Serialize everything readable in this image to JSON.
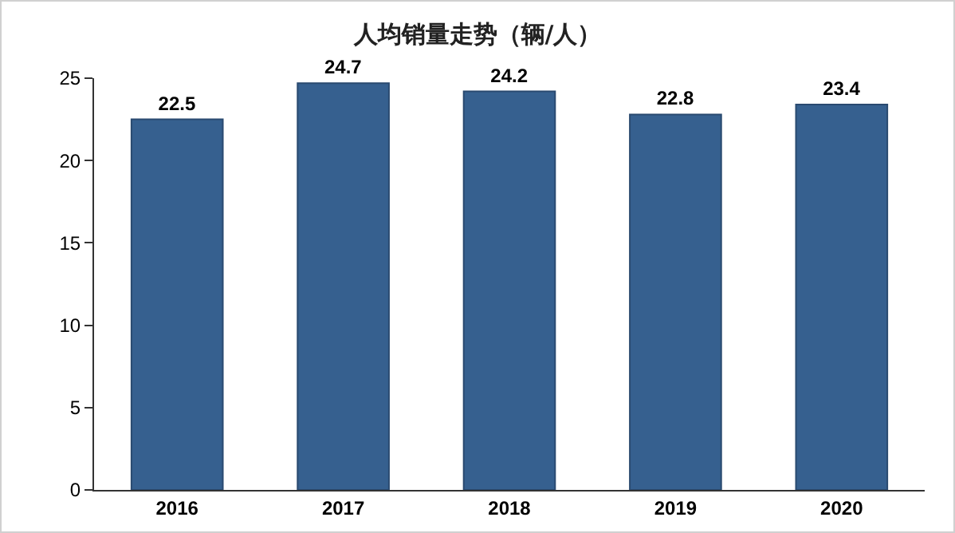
{
  "chart_data": {
    "type": "bar",
    "title": "人均销量走势（辆/人）",
    "categories": [
      "2016",
      "2017",
      "2018",
      "2019",
      "2020"
    ],
    "values": [
      22.5,
      24.7,
      24.2,
      22.8,
      23.4
    ],
    "color": "#36608f",
    "ylim": [
      0,
      25
    ],
    "yticks": [
      0,
      5,
      10,
      15,
      20,
      25
    ],
    "grid": false,
    "data_labels": true
  }
}
